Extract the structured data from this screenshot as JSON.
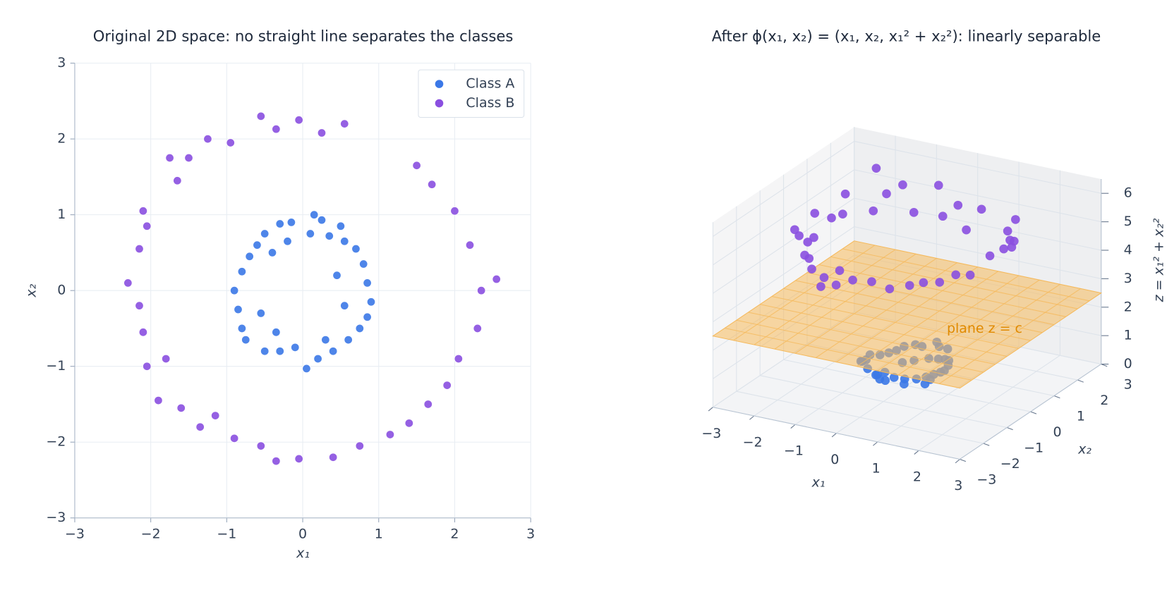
{
  "chart_data": [
    {
      "type": "scatter",
      "title": "Original 2D space: no straight line separates the classes",
      "xlabel": "x₁",
      "ylabel": "x₂",
      "xlim": [
        -3,
        3
      ],
      "ylim": [
        -3,
        3
      ],
      "xticks": [
        {
          "value": -3,
          "label": "−3"
        },
        {
          "value": -2,
          "label": "−2"
        },
        {
          "value": -1,
          "label": "−1"
        },
        0,
        1,
        2,
        3
      ],
      "yticks": [
        {
          "value": -3,
          "label": "−3"
        },
        {
          "value": -2,
          "label": "−2"
        },
        {
          "value": -1,
          "label": "−1"
        },
        0,
        1,
        2,
        3
      ],
      "grid": true,
      "legend": "upper right",
      "series": [
        {
          "name": "Class A",
          "color": "#3b78e7",
          "x": [
            0.15,
            0.25,
            0.5,
            -0.15,
            -0.3,
            -0.5,
            -0.6,
            -0.7,
            -0.8,
            -0.9,
            -0.85,
            -0.8,
            -0.75,
            -0.5,
            -0.3,
            -0.1,
            0.05,
            0.2,
            0.4,
            0.6,
            0.75,
            0.85,
            0.9,
            0.85,
            0.8,
            0.7,
            0.55,
            0.35,
            0.1,
            -0.2,
            -0.4,
            -0.55,
            -0.35,
            0.3,
            0.55,
            0.45
          ],
          "y": [
            1.0,
            0.93,
            0.85,
            0.9,
            0.88,
            0.75,
            0.6,
            0.45,
            0.25,
            0.0,
            -0.25,
            -0.5,
            -0.65,
            -0.8,
            -0.8,
            -0.75,
            -1.03,
            -0.9,
            -0.8,
            -0.65,
            -0.5,
            -0.35,
            -0.15,
            0.1,
            0.35,
            0.55,
            0.65,
            0.72,
            0.75,
            0.65,
            0.5,
            -0.3,
            -0.55,
            -0.65,
            -0.2,
            0.2
          ]
        },
        {
          "name": "Class B",
          "color": "#8a4fe0",
          "x": [
            -0.55,
            -0.05,
            0.55,
            -0.35,
            0.25,
            -0.95,
            -1.25,
            -1.5,
            -1.75,
            -1.65,
            -2.1,
            -2.05,
            -2.15,
            -2.3,
            -2.15,
            -2.1,
            -2.05,
            -1.8,
            -1.9,
            -1.6,
            -1.35,
            -1.15,
            -0.9,
            -0.55,
            -0.35,
            -0.05,
            0.4,
            0.75,
            1.15,
            1.4,
            1.65,
            1.9,
            2.05,
            2.3,
            2.35,
            2.55,
            2.2,
            2.0,
            1.7,
            1.5
          ],
          "y": [
            2.3,
            2.25,
            2.2,
            2.13,
            2.08,
            1.95,
            2.0,
            1.75,
            1.75,
            1.45,
            1.05,
            0.85,
            0.55,
            0.1,
            -0.2,
            -0.55,
            -1.0,
            -0.9,
            -1.45,
            -1.55,
            -1.8,
            -1.65,
            -1.95,
            -2.05,
            -2.25,
            -2.22,
            -2.2,
            -2.05,
            -1.9,
            -1.75,
            -1.5,
            -1.25,
            -0.9,
            -0.5,
            0.0,
            0.15,
            0.6,
            1.05,
            1.4,
            1.65
          ]
        }
      ]
    },
    {
      "type": "scatter3d",
      "title": "After ϕ(x₁, x₂) = (x₁, x₂, x₁² + x₂²): linearly separable",
      "xlabel": "x₁",
      "ylabel": "x₂",
      "zlabel": "z = x₁² + x₂²",
      "xlim": [
        -3,
        3
      ],
      "ylim": [
        -3,
        3
      ],
      "zlim": [
        0,
        6.5
      ],
      "xticks": [
        {
          "value": -3,
          "label": "−3"
        },
        {
          "value": -2,
          "label": "−2"
        },
        {
          "value": -1,
          "label": "−1"
        },
        0,
        1,
        2,
        3
      ],
      "yticks": [
        {
          "value": -3,
          "label": "−3"
        },
        {
          "value": -2,
          "label": "−2"
        },
        {
          "value": -1,
          "label": "−1"
        },
        0,
        1,
        2,
        3
      ],
      "zticks": [
        0,
        1,
        2,
        3,
        4,
        5,
        6
      ],
      "plane": {
        "z": 2.5,
        "label": "plane z = c",
        "color": "#f5b95b",
        "label_color": "#e08a00"
      },
      "series": [
        {
          "name": "Class A",
          "color": "#3b78e7",
          "x": [
            0.15,
            0.25,
            0.5,
            -0.15,
            -0.3,
            -0.5,
            -0.6,
            -0.7,
            -0.8,
            -0.9,
            -0.85,
            -0.8,
            -0.75,
            -0.5,
            -0.3,
            -0.1,
            0.05,
            0.2,
            0.4,
            0.6,
            0.75,
            0.85,
            0.9,
            0.85,
            0.8,
            0.7,
            0.55,
            0.35,
            0.1,
            -0.2,
            -0.4,
            -0.55,
            -0.35,
            0.3,
            0.55,
            0.45
          ],
          "y": [
            1.0,
            0.93,
            0.85,
            0.9,
            0.88,
            0.75,
            0.6,
            0.45,
            0.25,
            0.0,
            -0.25,
            -0.5,
            -0.65,
            -0.8,
            -0.8,
            -0.75,
            -1.03,
            -0.9,
            -0.8,
            -0.65,
            -0.5,
            -0.35,
            -0.15,
            0.1,
            0.35,
            0.55,
            0.65,
            0.72,
            0.75,
            0.65,
            0.5,
            -0.3,
            -0.55,
            -0.65,
            -0.2,
            0.2
          ],
          "z": [
            1.02,
            0.93,
            0.97,
            0.83,
            0.86,
            0.81,
            0.72,
            0.69,
            0.7,
            0.81,
            0.79,
            0.89,
            0.99,
            0.89,
            0.73,
            0.57,
            1.06,
            0.85,
            0.8,
            0.78,
            0.81,
            0.85,
            0.83,
            0.73,
            0.76,
            0.79,
            0.73,
            0.64,
            0.57,
            0.46,
            0.41,
            0.39,
            0.43,
            0.51,
            0.34,
            0.24
          ]
        },
        {
          "name": "Class B",
          "color": "#8a4fe0",
          "x": [
            -0.55,
            -0.05,
            0.55,
            -0.35,
            0.25,
            -0.95,
            -1.25,
            -1.5,
            -1.75,
            -1.65,
            -2.1,
            -2.05,
            -2.15,
            -2.3,
            -2.15,
            -2.1,
            -2.05,
            -1.8,
            -1.9,
            -1.6,
            -1.35,
            -1.15,
            -0.9,
            -0.55,
            -0.35,
            -0.05,
            0.4,
            0.75,
            1.15,
            1.4,
            1.65,
            1.9,
            2.05,
            2.3,
            2.35,
            2.55,
            2.2,
            2.0,
            1.7,
            1.5
          ],
          "y": [
            2.3,
            2.25,
            2.2,
            2.13,
            2.08,
            1.95,
            2.0,
            1.75,
            1.75,
            1.45,
            1.05,
            0.85,
            0.55,
            0.1,
            -0.2,
            -0.55,
            -1.0,
            -0.9,
            -1.45,
            -1.55,
            -1.8,
            -1.65,
            -1.95,
            -2.05,
            -2.25,
            -2.22,
            -2.2,
            -2.05,
            -1.9,
            -1.75,
            -1.5,
            -1.25,
            -0.9,
            -0.5,
            0.0,
            0.15,
            0.6,
            1.05,
            1.4,
            1.65
          ],
          "z": [
            5.59,
            5.07,
            5.14,
            4.66,
            4.39,
            4.71,
            5.56,
            5.31,
            6.13,
            4.83,
            5.51,
            4.93,
            4.93,
            5.3,
            4.66,
            4.71,
            5.2,
            4.05,
            5.71,
            4.96,
            5.06,
            4.05,
            4.61,
            4.51,
            5.19,
            4.93,
            5.0,
            4.77,
            4.93,
            5.02,
            4.97,
            5.17,
            5.01,
            5.54,
            5.52,
            6.53,
            5.2,
            5.1,
            4.85,
            4.97
          ]
        }
      ]
    }
  ]
}
